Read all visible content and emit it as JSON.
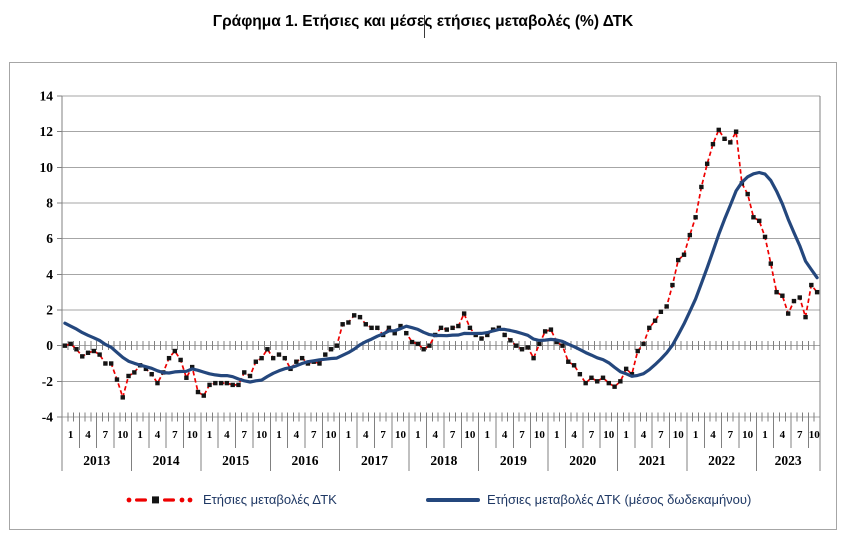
{
  "title": "Γράφημα 1. Ετήσιες και μέσες ετήσιες μεταβολές (%) ΔΤΚ",
  "legend": {
    "items": [
      {
        "label": "Ετήσιες μεταβολές ΔΤΚ",
        "color": "#EE0000",
        "style": "dashed-with-black-square-marker"
      },
      {
        "label": "Ετήσιες μεταβολές ΔΤΚ (μέσος δωδεκαμήνου)",
        "color": "#24477D",
        "style": "solid"
      }
    ]
  },
  "colors": {
    "annual_series": "#EE0000",
    "average_series": "#24477D",
    "marker": "#141414",
    "gridline": "#a6a6a6",
    "axis": "#808080",
    "legend_text": "#1F3864"
  },
  "chart_data": {
    "type": "line",
    "title": "Γράφημα 1. Ετήσιες και μέσες ετήσιες μεταβολές (%) ΔΤΚ",
    "x_start": "2013-01",
    "x_end": "2023-11",
    "years": [
      2013,
      2014,
      2015,
      2016,
      2017,
      2018,
      2019,
      2020,
      2021,
      2022,
      2023
    ],
    "month_tick_labels": [
      1,
      4,
      7,
      10
    ],
    "ylim": [
      -4,
      14
    ],
    "y_ticks": [
      -4,
      -2,
      0,
      2,
      4,
      6,
      8,
      10,
      12,
      14
    ],
    "grid": true,
    "legend_position": "bottom",
    "series": [
      {
        "name": "Ετήσιες μεταβολές ΔΤΚ",
        "color": "#EE0000",
        "line_style": "dashed",
        "marker": "black-square",
        "values": [
          0.0,
          0.1,
          -0.2,
          -0.6,
          -0.4,
          -0.3,
          -0.5,
          -1.0,
          -1.0,
          -1.9,
          -2.9,
          -1.7,
          -1.5,
          -1.1,
          -1.3,
          -1.6,
          -2.1,
          -1.5,
          -0.7,
          -0.3,
          -0.8,
          -1.8,
          -1.2,
          -2.6,
          -2.8,
          -2.2,
          -2.1,
          -2.1,
          -2.1,
          -2.2,
          -2.2,
          -1.5,
          -1.7,
          -0.9,
          -0.7,
          -0.2,
          -0.7,
          -0.5,
          -0.7,
          -1.3,
          -0.9,
          -0.7,
          -1.0,
          -0.9,
          -1.0,
          -0.5,
          -0.2,
          0.0,
          1.2,
          1.3,
          1.7,
          1.6,
          1.2,
          1.0,
          1.0,
          0.6,
          1.0,
          0.7,
          1.1,
          0.7,
          0.2,
          0.1,
          -0.2,
          0.0,
          0.6,
          1.0,
          0.9,
          1.0,
          1.1,
          1.8,
          1.0,
          0.6,
          0.4,
          0.6,
          0.9,
          1.0,
          0.6,
          0.3,
          0.0,
          -0.2,
          -0.1,
          -0.7,
          0.1,
          0.8,
          0.9,
          0.2,
          0.0,
          -0.9,
          -1.1,
          -1.6,
          -2.1,
          -1.8,
          -2.0,
          -1.8,
          -2.1,
          -2.3,
          -2.0,
          -1.3,
          -1.6,
          -0.3,
          0.1,
          1.0,
          1.4,
          1.9,
          2.2,
          3.4,
          4.8,
          5.1,
          6.2,
          7.2,
          8.9,
          10.2,
          11.3,
          12.1,
          11.6,
          11.4,
          12.0,
          9.1,
          8.5,
          7.2,
          7.0,
          6.1,
          4.6,
          3.0,
          2.8,
          1.8,
          2.5,
          2.7,
          1.6,
          3.4,
          3.0
        ]
      },
      {
        "name": "Ετήσιες μεταβολές ΔΤΚ (μέσος δωδεκαμήνου)",
        "color": "#24477D",
        "line_style": "solid",
        "marker": "none",
        "values": [
          1.26,
          1.09,
          0.93,
          0.73,
          0.58,
          0.44,
          0.29,
          0.07,
          -0.09,
          -0.38,
          -0.66,
          -0.87,
          -0.99,
          -1.09,
          -1.18,
          -1.27,
          -1.41,
          -1.51,
          -1.53,
          -1.47,
          -1.45,
          -1.44,
          -1.3,
          -1.38,
          -1.48,
          -1.58,
          -1.64,
          -1.68,
          -1.68,
          -1.74,
          -1.87,
          -1.97,
          -2.04,
          -1.97,
          -1.93,
          -1.73,
          -1.55,
          -1.41,
          -1.29,
          -1.23,
          -1.13,
          -1.0,
          -0.9,
          -0.85,
          -0.79,
          -0.76,
          -0.72,
          -0.7,
          -0.54,
          -0.39,
          -0.19,
          0.05,
          0.23,
          0.37,
          0.53,
          0.66,
          0.83,
          0.84,
          0.95,
          1.09,
          1.01,
          0.91,
          0.75,
          0.62,
          0.57,
          0.57,
          0.56,
          0.59,
          0.6,
          0.69,
          0.68,
          0.68,
          0.69,
          0.73,
          0.83,
          0.91,
          0.91,
          0.85,
          0.78,
          0.68,
          0.58,
          0.37,
          0.29,
          0.31,
          0.35,
          0.32,
          0.24,
          0.08,
          -0.06,
          -0.22,
          -0.39,
          -0.53,
          -0.68,
          -0.78,
          -0.96,
          -1.22,
          -1.46,
          -1.58,
          -1.72,
          -1.67,
          -1.57,
          -1.35,
          -1.06,
          -0.75,
          -0.4,
          0.03,
          0.61,
          1.22,
          1.91,
          2.62,
          3.49,
          4.37,
          5.3,
          6.23,
          7.08,
          7.87,
          8.68,
          9.16,
          9.47,
          9.64,
          9.71,
          9.62,
          9.26,
          8.66,
          7.95,
          7.09,
          6.33,
          5.61,
          4.74,
          4.27,
          3.81
        ]
      }
    ]
  }
}
